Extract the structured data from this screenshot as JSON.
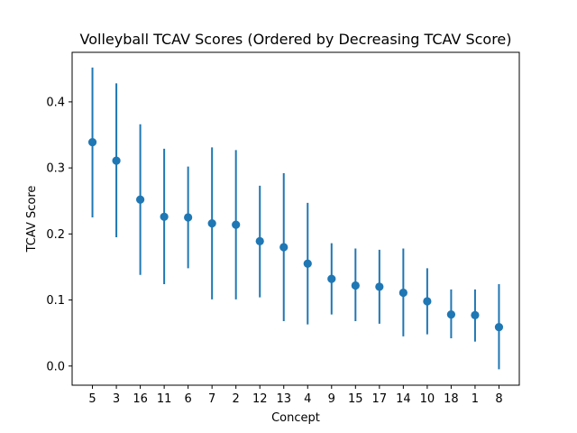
{
  "chart_data": {
    "type": "scatter",
    "title": "Volleyball TCAV Scores (Ordered by Decreasing TCAV Score)",
    "xlabel": "Concept",
    "ylabel": "TCAV Score",
    "categories": [
      "5",
      "3",
      "16",
      "11",
      "6",
      "7",
      "2",
      "12",
      "13",
      "4",
      "9",
      "15",
      "17",
      "14",
      "10",
      "18",
      "1",
      "8"
    ],
    "series": [
      {
        "values": [
          0.339,
          0.311,
          0.252,
          0.226,
          0.225,
          0.216,
          0.214,
          0.189,
          0.18,
          0.155,
          0.132,
          0.122,
          0.12,
          0.111,
          0.098,
          0.078,
          0.077,
          0.059
        ],
        "err_low": [
          0.225,
          0.195,
          0.138,
          0.124,
          0.148,
          0.101,
          0.101,
          0.104,
          0.068,
          0.063,
          0.078,
          0.068,
          0.064,
          0.045,
          0.048,
          0.042,
          0.037,
          -0.005
        ],
        "err_high": [
          0.452,
          0.428,
          0.366,
          0.329,
          0.302,
          0.331,
          0.327,
          0.273,
          0.292,
          0.247,
          0.186,
          0.178,
          0.176,
          0.178,
          0.148,
          0.116,
          0.116,
          0.124
        ],
        "color": "#1f77b4"
      }
    ],
    "ylim": [
      -0.029,
      0.475
    ],
    "yticks": [
      0.0,
      0.1,
      0.2,
      0.3,
      0.4
    ],
    "ytick_labels": [
      "0.0",
      "0.1",
      "0.2",
      "0.3",
      "0.4"
    ],
    "grid": false,
    "legend": "none"
  }
}
